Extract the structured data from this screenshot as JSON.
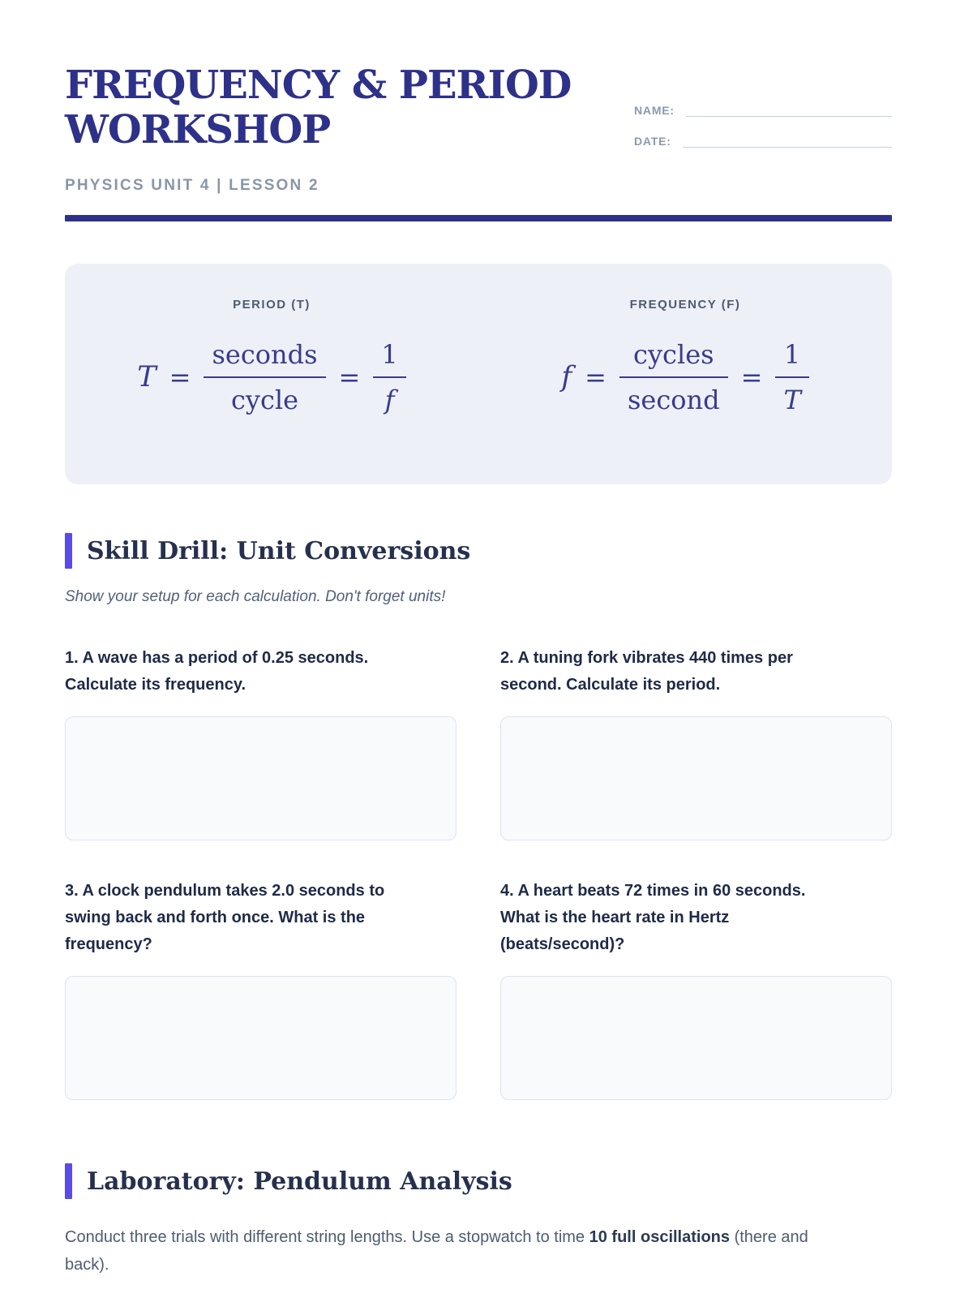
{
  "header": {
    "title_line1": "FREQUENCY & PERIOD",
    "title_line2": "WORKSHOP",
    "subtitle": "PHYSICS UNIT 4 | LESSON 2",
    "name_label": "NAME:",
    "date_label": "DATE:"
  },
  "formula_box": {
    "equals": "=",
    "period": {
      "label": "PERIOD (T)",
      "variable": "T",
      "numerator": "seconds",
      "denominator": "cycle",
      "one": "1",
      "reciprocal_of": "f"
    },
    "frequency": {
      "label": "FREQUENCY (F)",
      "variable": "f",
      "numerator": "cycles",
      "denominator": "second",
      "one": "1",
      "reciprocal_of": "T"
    }
  },
  "skill_drill": {
    "heading": "Skill Drill: Unit Conversions",
    "note": "Show your setup for each calculation. Don't forget units!",
    "problems": [
      {
        "text": "1. A wave has a period of 0.25 seconds. Calculate its frequency."
      },
      {
        "text": "2. A tuning fork vibrates 440 times per second. Calculate its period."
      },
      {
        "text": "3. A clock pendulum takes 2.0 seconds to swing back and forth once. What is the frequency?"
      },
      {
        "text": "4. A heart beats 72 times in 60 seconds. What is the heart rate in Hertz (beats/second)?"
      }
    ]
  },
  "laboratory": {
    "heading": "Laboratory: Pendulum Analysis",
    "intro_pre": "Conduct three trials with different string lengths. Use a stopwatch to time ",
    "intro_bold": "10 full oscillations",
    "intro_post": " (there and back)."
  },
  "colors": {
    "primary_navy": "#2e3189",
    "accent_purple": "#5a4be8",
    "formula_ink": "#3a3a8e",
    "heading_ink": "#26304e",
    "body_ink": "#1e2a47",
    "muted_ink": "#53607a",
    "field_label": "#8c99af",
    "field_line": "#c5d1e1",
    "formula_box_bg": "#edf1f7",
    "answer_box_bg": "#f8fafc",
    "answer_box_border": "#dde4ef"
  }
}
